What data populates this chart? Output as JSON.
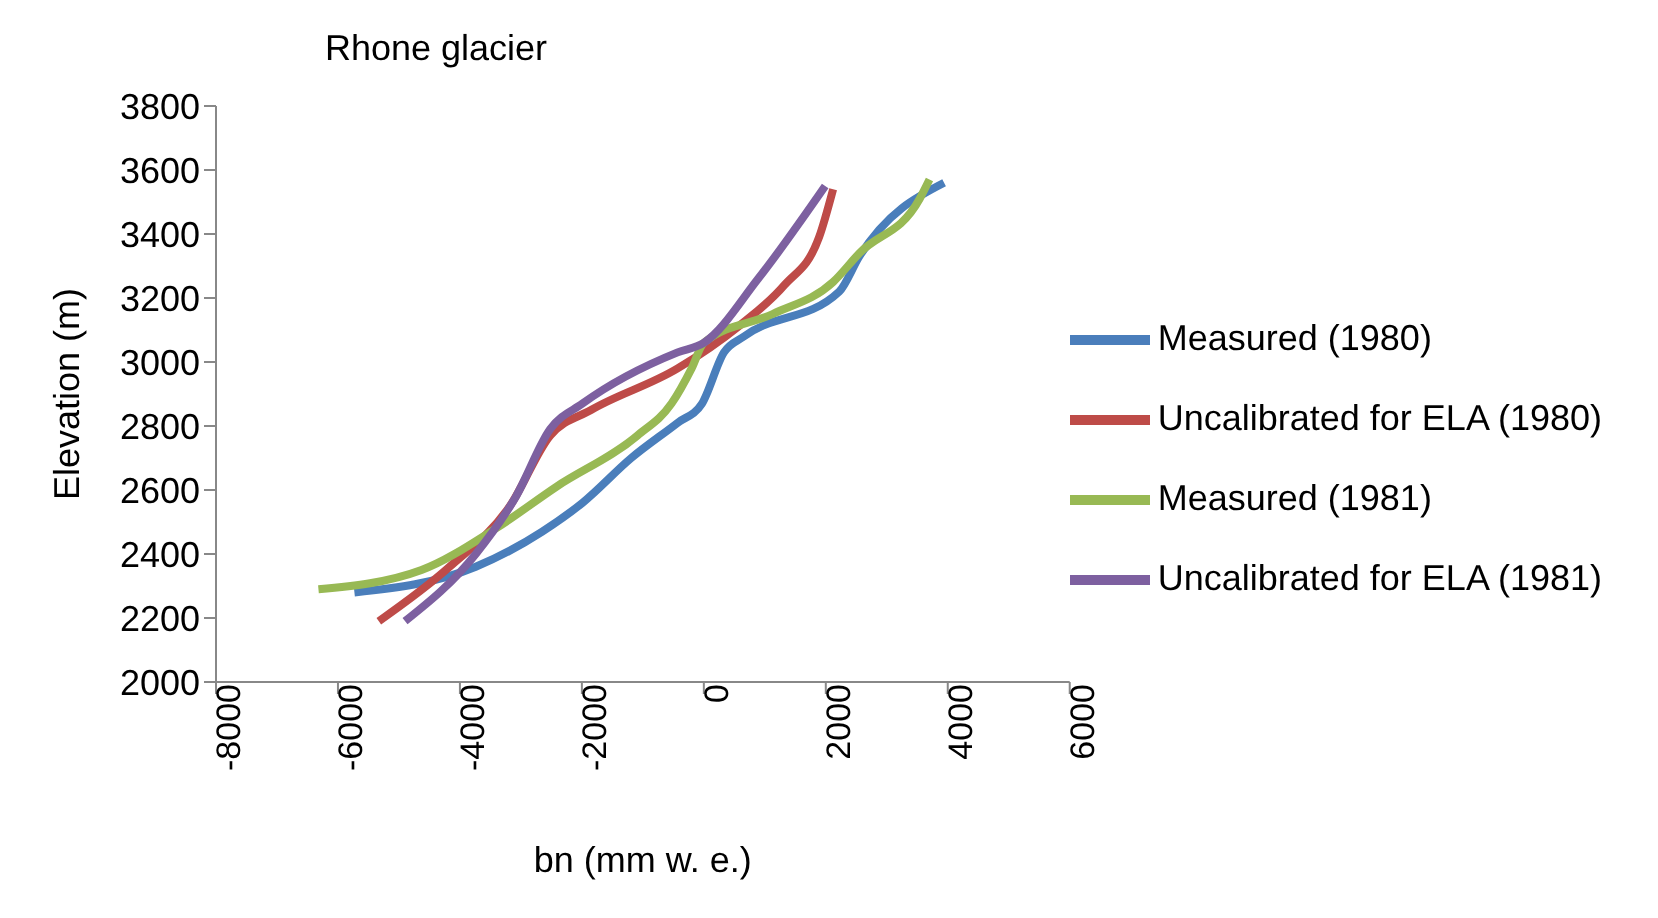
{
  "chart_data": {
    "type": "line",
    "title": "Rhone glacier",
    "xlabel": "bn (mm w. e.)",
    "ylabel": "Elevation (m)",
    "xlim": [
      -8000,
      6000
    ],
    "xticks": [
      -8000,
      -6000,
      -4000,
      -2000,
      0,
      2000,
      4000,
      6000
    ],
    "ylim": [
      2000,
      3800
    ],
    "yticks": [
      2000,
      2200,
      2400,
      2600,
      2800,
      3000,
      3200,
      3400,
      3600,
      3800
    ],
    "legend": "right",
    "marker": "none",
    "line_style": "solid",
    "series": [
      {
        "name": "Measured (1980)",
        "color": "#4a7ebb",
        "x": [
          -5730,
          -3740,
          -2650,
          -1990,
          -1190,
          -430,
          -30,
          330,
          660,
          2220,
          2550,
          3940
        ],
        "values": [
          2280,
          2360,
          2470,
          2560,
          2700,
          2810,
          2870,
          3030,
          3080,
          3220,
          3330,
          3560
        ]
      },
      {
        "name": "Uncalibrated for ELA (1980)",
        "color": "#be4b48",
        "x": [
          -5330,
          -4170,
          -3180,
          -2520,
          -1850,
          -430,
          560,
          1320,
          1890,
          2120
        ],
        "values": [
          2190,
          2360,
          2550,
          2770,
          2850,
          2980,
          3110,
          3240,
          3390,
          3540
        ]
      },
      {
        "name": "Measured (1981)",
        "color": "#98b954",
        "x": [
          -6320,
          -4630,
          -3410,
          -2420,
          -1090,
          -530,
          -200,
          0,
          1130,
          2120,
          2550,
          3540,
          3700
        ],
        "values": [
          2290,
          2350,
          2480,
          2610,
          2770,
          2870,
          2980,
          3060,
          3150,
          3250,
          3340,
          3510,
          3570
        ]
      },
      {
        "name": "Uncalibrated for ELA (1981)",
        "color": "#7d60a0",
        "x": [
          -4900,
          -3740,
          -3080,
          -2520,
          -1990,
          -430,
          0,
          890,
          1990
        ],
        "values": [
          2190,
          2400,
          2580,
          2790,
          2870,
          3030,
          3060,
          3260,
          3550
        ]
      }
    ]
  }
}
